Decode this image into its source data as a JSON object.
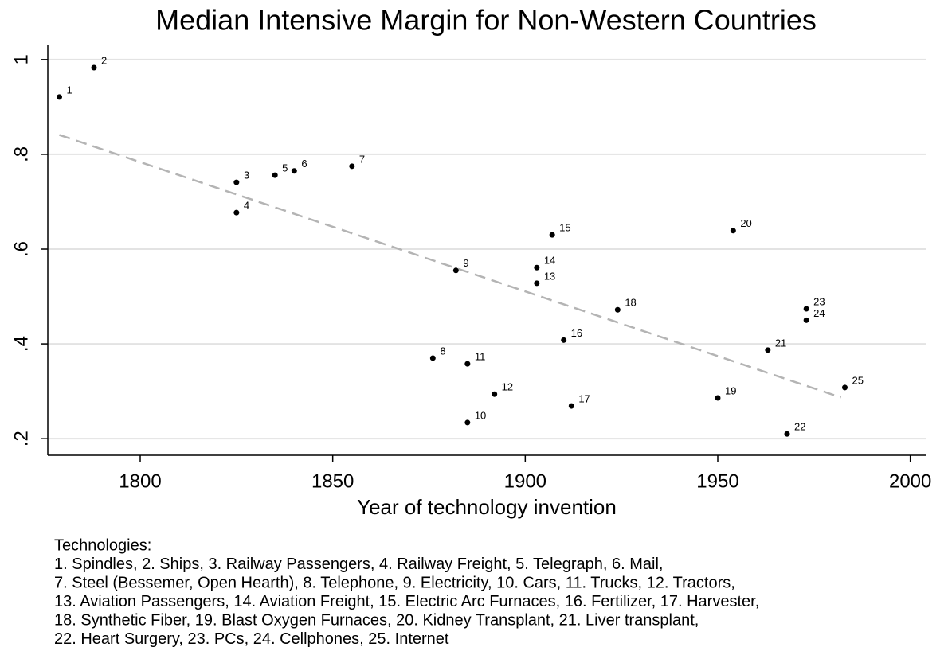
{
  "chart_data": {
    "type": "scatter",
    "title": "Median Intensive Margin for Non-Western Countries",
    "x_label": "Year of technology invention",
    "x": [
      1779,
      1788,
      1825,
      1825,
      1835,
      1840,
      1855,
      1876,
      1882,
      1885,
      1885,
      1892,
      1903,
      1903,
      1907,
      1910,
      1912,
      1924,
      1950,
      1954,
      1963,
      1968,
      1973,
      1973,
      1983
    ],
    "values": [
      0.921,
      0.983,
      0.741,
      0.677,
      0.756,
      0.765,
      0.775,
      0.37,
      0.555,
      0.234,
      0.358,
      0.294,
      0.528,
      0.561,
      0.63,
      0.408,
      0.269,
      0.472,
      0.286,
      0.639,
      0.387,
      0.21,
      0.474,
      0.45,
      0.308
    ],
    "point_labels": [
      "1",
      "2",
      "3",
      "4",
      "5",
      "6",
      "7",
      "8",
      "9",
      "10",
      "11",
      "12",
      "13",
      "14",
      "15",
      "16",
      "17",
      "18",
      "19",
      "20",
      "21",
      "22",
      "23",
      "24",
      "25"
    ],
    "color": "#000000",
    "fit_line": {
      "x": [
        1779,
        1982
      ],
      "values": [
        0.841,
        0.287
      ],
      "color": "#b4b4b4"
    },
    "xlim": [
      1776,
      2004
    ],
    "ylim": [
      0.165,
      1.03
    ],
    "xticks": [
      1800,
      1850,
      1900,
      1950,
      2000
    ],
    "yticks": [
      {
        "value": 0.2,
        "label": ".2"
      },
      {
        "value": 0.4,
        "label": ".4"
      },
      {
        "value": 0.6,
        "label": ".6"
      },
      {
        "value": 0.8,
        "label": ".8"
      },
      1
    ],
    "grid": true,
    "notes": [
      "Technologies:",
      "1. Spindles, 2. Ships, 3. Railway Passengers, 4. Railway Freight, 5. Telegraph,  6. Mail,",
      "7. Steel (Bessemer, Open Hearth), 8. Telephone, 9. Electricity, 10. Cars, 11. Trucks, 12. Tractors,",
      "13. Aviation Passengers, 14. Aviation Freight, 15. Electric Arc Furnaces, 16. Fertilizer, 17. Harvester,",
      "18. Synthetic Fiber, 19. Blast Oxygen Furnaces, 20. Kidney Transplant, 21. Liver transplant,",
      "22. Heart Surgery,  23. PCs, 24. Cellphones, 25. Internet"
    ]
  }
}
